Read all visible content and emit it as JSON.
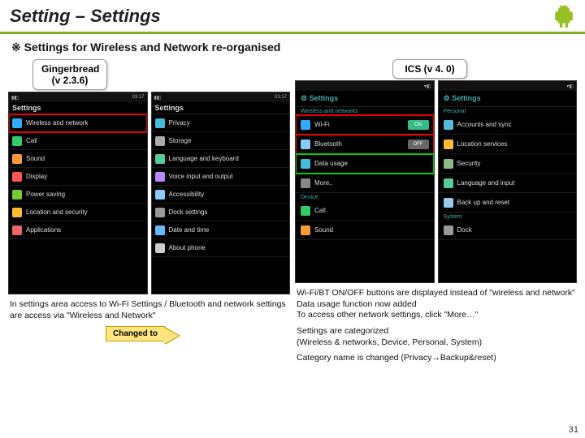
{
  "header": {
    "title": "Setting – Settings"
  },
  "subheader": "※ Settings for Wireless and Network re-organised",
  "tabs": {
    "left": "Gingerbread (v 2.3.6)",
    "right": "ICS (v 4. 0)"
  },
  "status_time1": "03:17",
  "status_time2": "03:17",
  "gb_title": "Settings",
  "gb": {
    "a": [
      "Wireless and network",
      "Call",
      "Sound",
      "Display",
      "Power saving",
      "Location and security",
      "Applications"
    ],
    "b": [
      "Privacy",
      "Storage",
      "Language and keyboard",
      "Voice input and output",
      "Accessibility",
      "Dock settings",
      "Date and time",
      "About phone"
    ]
  },
  "ics_title": "Settings",
  "ics_a": {
    "sec1": "Wireless and networks",
    "items1": [
      "Wi-Fi",
      "Bluetooth",
      "Data usage",
      "More.."
    ],
    "sec2": "Device",
    "items2": [
      "Call",
      "Sound"
    ]
  },
  "ics_b": {
    "sec1": "Personal",
    "items1": [
      "Accounts and sync",
      "Location services",
      "Security",
      "Language and input",
      "Back up and reset"
    ],
    "sec2": "System",
    "items2": [
      "Dock"
    ]
  },
  "toggles": {
    "on": "ON",
    "off": "OFF"
  },
  "caption_left": "In settings area access to Wi-Fi Settings / Bluetooth and network settings are access via \"Wireless and Network\"",
  "arrow_label": "Changed to",
  "caption_right_1": "Wi-Fi/BT ON/OFF buttons are displayed instead of \"wireless and network\"\nData usage function now added\nTo access other network settings, click \"More…\"",
  "caption_right_2": "Settings are categorized\n  (Wireless & networks, Device, Personal, System)",
  "caption_right_3": "Category name is changed (Privacy→Backup&reset)",
  "page_num": "31",
  "icons": {
    "wifi": "#3af",
    "call": "#3c6",
    "sound": "#f93",
    "display": "#f55",
    "power": "#7c3",
    "loc": "#fb3",
    "apps": "#e66",
    "privacy": "#4bd",
    "storage": "#aaa",
    "lang": "#5c9",
    "voice": "#b8f",
    "acc": "#8cf",
    "dock": "#999",
    "date": "#6bf",
    "about": "#ccc",
    "data": "#4bd",
    "more": "#888",
    "sec": "#8b8",
    "sync": "#5bd",
    "backup": "#9ce"
  }
}
